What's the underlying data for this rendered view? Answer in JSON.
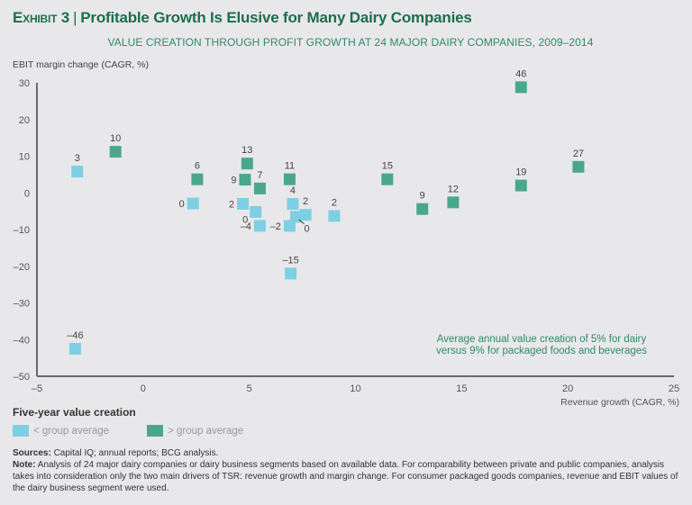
{
  "header": {
    "exhibit": "Exhibit 3",
    "title": "Profitable Growth Is Elusive for Many Dairy Companies",
    "subtitle": "VALUE CREATION THROUGH PROFIT GROWTH AT 24 MAJOR DAIRY COMPANIES, 2009–2014"
  },
  "annotation": {
    "line1": "Average annual value creation of 5% for dairy",
    "line2": "versus 9% for packaged foods and beverages"
  },
  "legend": {
    "title": "Five-year value creation",
    "items": [
      {
        "label": "< group average",
        "color": "#7dd0e3"
      },
      {
        "label": "> group average",
        "color": "#4aa88a"
      }
    ]
  },
  "footer": {
    "sources_label": "Sources:",
    "sources_text": " Capital IQ; annual reports; BCG analysis.",
    "note_label": "Note:",
    "note_text": " Analysis of 24 major dairy companies or dairy business segments based on available data. For comparability between private and public companies, analysis takes into consideration only the two main drivers of TSR: revenue growth and margin change. For consumer packaged goods companies, revenue and EBIT values of the dairy business segment were used."
  },
  "chart_data": {
    "type": "scatter",
    "title": "VALUE CREATION THROUGH PROFIT GROWTH AT 24 MAJOR DAIRY COMPANIES, 2009–2014",
    "xlabel": "Revenue growth (CAGR, %)",
    "ylabel": "EBIT margin change (CAGR, %)",
    "xlim": [
      -5,
      25
    ],
    "ylim": [
      -50,
      30
    ],
    "xticks": [
      -5,
      0,
      5,
      10,
      15,
      20,
      25
    ],
    "xtick_labels": [
      "–5",
      "0",
      "5",
      "10",
      "15",
      "20",
      "25"
    ],
    "yticks": [
      30,
      20,
      10,
      0,
      -10,
      -20,
      -30,
      -40,
      -50
    ],
    "ytick_labels": [
      "30",
      "20",
      "10",
      "0",
      "–10",
      "–20",
      "–30",
      "–40",
      "–50"
    ],
    "grid": false,
    "legend_position": "bottom-left",
    "series": [
      {
        "name": "< group average",
        "color": "#7dd0e3",
        "points": [
          {
            "x": -3.1,
            "y": 5.8,
            "label": "3",
            "pos": "top"
          },
          {
            "x": 2.35,
            "y": -2.9,
            "label": "0",
            "pos": "left"
          },
          {
            "x": 4.7,
            "y": -3.0,
            "label": "2",
            "pos": "left"
          },
          {
            "x": 5.3,
            "y": -5.2,
            "label": "0",
            "pos": "below-left"
          },
          {
            "x": 5.5,
            "y": -9.0,
            "label": "–4",
            "pos": "left"
          },
          {
            "x": 7.05,
            "y": -3.0,
            "label": "4",
            "pos": "top"
          },
          {
            "x": 7.65,
            "y": -6.0,
            "label": "2",
            "pos": "top"
          },
          {
            "x": 7.2,
            "y": -6.5,
            "label": "0",
            "pos": "leader"
          },
          {
            "x": 6.9,
            "y": -9.0,
            "label": "–2",
            "pos": "left"
          },
          {
            "x": 9.0,
            "y": -6.3,
            "label": "2",
            "pos": "top"
          },
          {
            "x": 6.95,
            "y": -22.0,
            "label": "–15",
            "pos": "top"
          },
          {
            "x": -3.2,
            "y": -42.5,
            "label": "–46",
            "pos": "top"
          }
        ]
      },
      {
        "name": "> group average",
        "color": "#4aa88a",
        "points": [
          {
            "x": -1.3,
            "y": 11.2,
            "label": "10",
            "pos": "top"
          },
          {
            "x": 2.55,
            "y": 3.7,
            "label": "6",
            "pos": "top"
          },
          {
            "x": 4.9,
            "y": 8.0,
            "label": "13",
            "pos": "top"
          },
          {
            "x": 4.8,
            "y": 3.6,
            "label": "9",
            "pos": "left"
          },
          {
            "x": 5.5,
            "y": 1.2,
            "label": "7",
            "pos": "top"
          },
          {
            "x": 6.9,
            "y": 3.7,
            "label": "11",
            "pos": "top"
          },
          {
            "x": 11.5,
            "y": 3.7,
            "label": "15",
            "pos": "top"
          },
          {
            "x": 13.15,
            "y": -4.4,
            "label": "9",
            "pos": "top"
          },
          {
            "x": 14.6,
            "y": -2.6,
            "label": "12",
            "pos": "top"
          },
          {
            "x": 17.8,
            "y": 28.8,
            "label": "46",
            "pos": "top"
          },
          {
            "x": 17.8,
            "y": 2.0,
            "label": "19",
            "pos": "top"
          },
          {
            "x": 20.5,
            "y": 7.1,
            "label": "27",
            "pos": "top"
          }
        ]
      }
    ]
  }
}
